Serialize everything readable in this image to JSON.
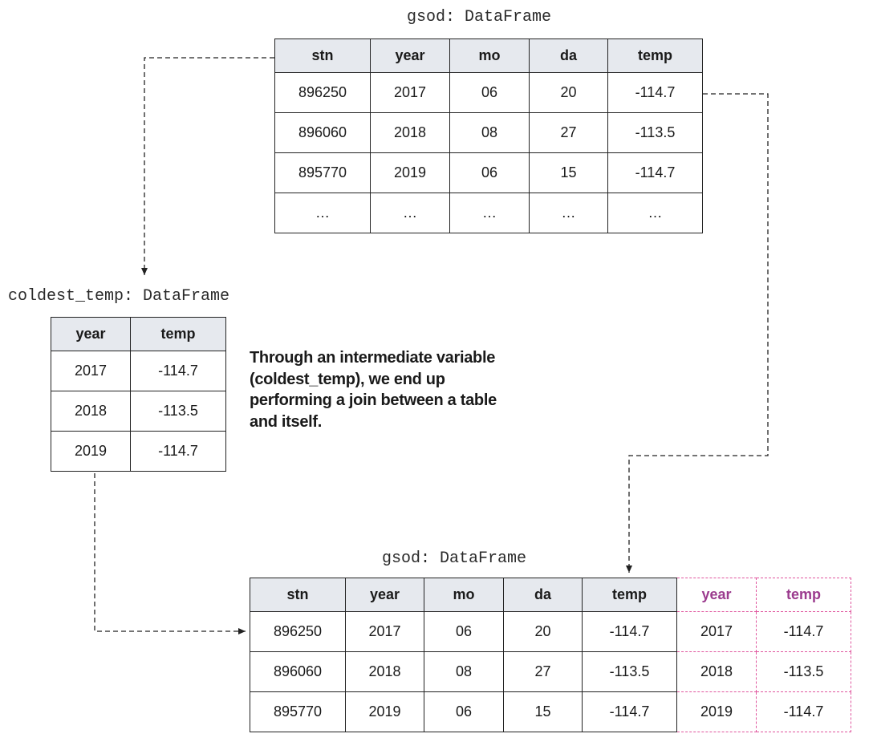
{
  "top_table": {
    "caption": "gsod: DataFrame",
    "headers": [
      "stn",
      "year",
      "mo",
      "da",
      "temp"
    ],
    "rows": [
      [
        "896250",
        "2017",
        "06",
        "20",
        "-114.7"
      ],
      [
        "896060",
        "2018",
        "08",
        "27",
        "-113.5"
      ],
      [
        "895770",
        "2019",
        "06",
        "15",
        "-114.7"
      ],
      [
        "…",
        "…",
        "…",
        "…",
        "…"
      ]
    ]
  },
  "coldest_table": {
    "caption": "coldest_temp: DataFrame",
    "headers": [
      "year",
      "temp"
    ],
    "rows": [
      [
        "2017",
        "-114.7"
      ],
      [
        "2018",
        "-113.5"
      ],
      [
        "2019",
        "-114.7"
      ]
    ]
  },
  "note": {
    "lines": [
      "Through an intermediate variable",
      "(coldest_temp), we end up",
      "performing a join between a table",
      "and itself."
    ]
  },
  "result_table": {
    "caption": "gsod: DataFrame",
    "headers": [
      "stn",
      "year",
      "mo",
      "da",
      "temp"
    ],
    "added_headers": [
      "year",
      "temp"
    ],
    "rows": [
      [
        "896250",
        "2017",
        "06",
        "20",
        "-114.7"
      ],
      [
        "896060",
        "2018",
        "08",
        "27",
        "-113.5"
      ],
      [
        "895770",
        "2019",
        "06",
        "15",
        "-114.7"
      ]
    ],
    "added_rows": [
      [
        "2017",
        "-114.7"
      ],
      [
        "2018",
        "-113.5"
      ],
      [
        "2019",
        "-114.7"
      ]
    ]
  },
  "colors": {
    "header_fill": "#e6e9ee",
    "added_border": "#e0569e",
    "added_header_text": "#9b3b8e",
    "connector": "#222222"
  }
}
